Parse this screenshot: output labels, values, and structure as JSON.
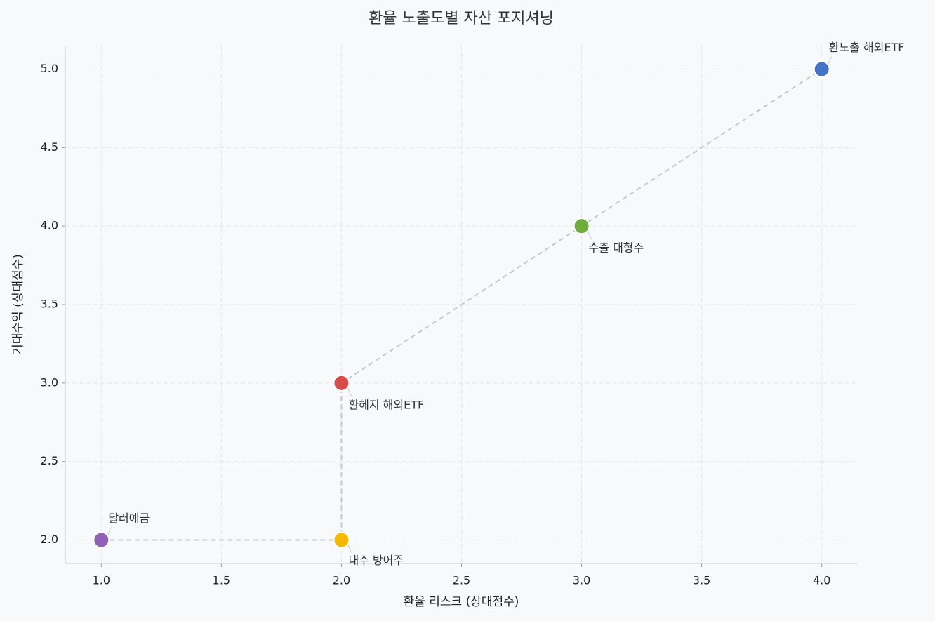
{
  "chart_data": {
    "type": "scatter",
    "title": "환율 노출도별 자산 포지셔닝",
    "x_label": "환율 리스크 (상대점수)",
    "y_label": "기대수익 (상대점수)",
    "labels": [
      "달러예금",
      "내수 방어주",
      "환헤지 해외ETF",
      "수출 대형주",
      "환노출 해외ETF"
    ],
    "x": [
      1,
      2,
      2,
      3,
      4
    ],
    "values": [
      2,
      2,
      3,
      4,
      5
    ],
    "colors": [
      "#8e63b5",
      "#f5b800",
      "#d94b4b",
      "#6fab3f",
      "#4472c4"
    ],
    "connect_line": true,
    "xlim": [
      0.85,
      4.15
    ],
    "ylim": [
      1.85,
      5.15
    ],
    "xticks": [
      {
        "value": 1,
        "label": "1.0"
      },
      {
        "value": 1.5,
        "label": "1.5"
      },
      {
        "value": 2,
        "label": "2.0"
      },
      {
        "value": 2.5,
        "label": "2.5"
      },
      {
        "value": 3,
        "label": "3.0"
      },
      {
        "value": 3.5,
        "label": "3.5"
      },
      {
        "value": 4,
        "label": "4.0"
      }
    ],
    "yticks": [
      {
        "value": 2,
        "label": "2.0"
      },
      {
        "value": 2.5,
        "label": "2.5"
      },
      {
        "value": 3,
        "label": "3.0"
      },
      {
        "value": 3.5,
        "label": "3.5"
      },
      {
        "value": 4,
        "label": "4.0"
      },
      {
        "value": 4.5,
        "label": "4.5"
      },
      {
        "value": 5,
        "label": "5.0"
      }
    ],
    "grid": true
  }
}
